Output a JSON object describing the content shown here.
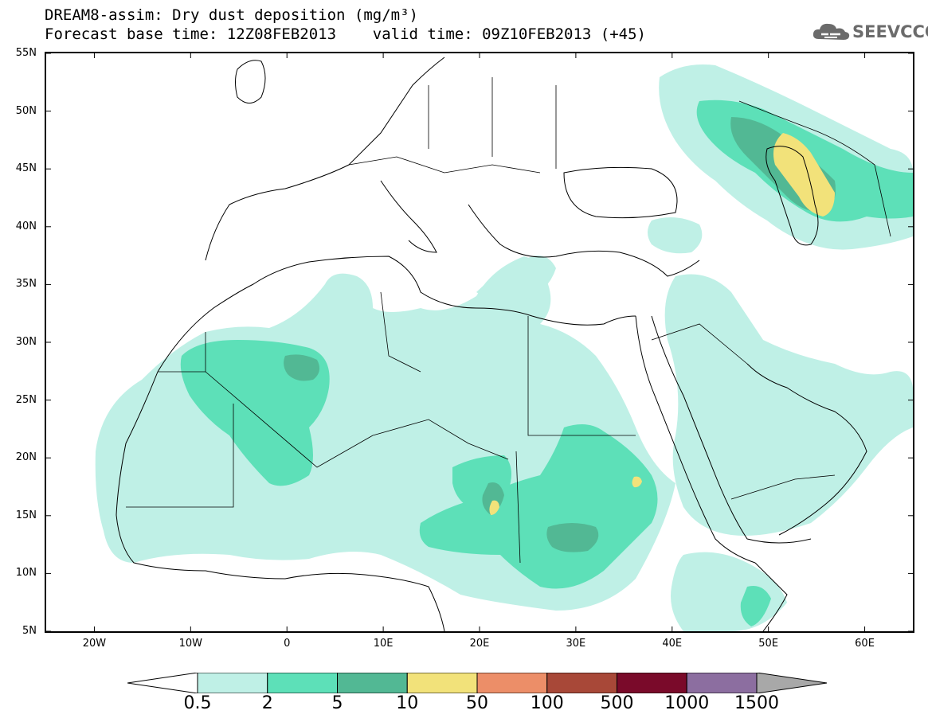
{
  "title": {
    "line1": "DREAM8-assim: Dry dust deposition (mg/m³)",
    "line2": "Forecast base time: 12Z08FEB2013    valid time: 09Z10FEB2013 (+45)"
  },
  "logo": {
    "text": "SEEVCCC"
  },
  "map": {
    "lat_range": [
      5,
      55
    ],
    "lon_range": [
      -25,
      65
    ],
    "lat_ticks": [
      {
        "value": 55,
        "label": "55N"
      },
      {
        "value": 50,
        "label": "50N"
      },
      {
        "value": 45,
        "label": "45N"
      },
      {
        "value": 40,
        "label": "40N"
      },
      {
        "value": 35,
        "label": "35N"
      },
      {
        "value": 30,
        "label": "30N"
      },
      {
        "value": 25,
        "label": "25N"
      },
      {
        "value": 20,
        "label": "20N"
      },
      {
        "value": 15,
        "label": "15N"
      },
      {
        "value": 10,
        "label": "10N"
      },
      {
        "value": 5,
        "label": "5N"
      }
    ],
    "lon_ticks": [
      {
        "value": -20,
        "label": "20W"
      },
      {
        "value": -10,
        "label": "10W"
      },
      {
        "value": 0,
        "label": "0"
      },
      {
        "value": 10,
        "label": "10E"
      },
      {
        "value": 20,
        "label": "20E"
      },
      {
        "value": 30,
        "label": "30E"
      },
      {
        "value": 40,
        "label": "40E"
      },
      {
        "value": 50,
        "label": "50E"
      },
      {
        "value": 60,
        "label": "60E"
      }
    ],
    "colors": {
      "c0_5": "#bff0e6",
      "c2": "#5de0b8",
      "c5": "#52b894",
      "c10": "#f2e27a"
    }
  },
  "colorbar": {
    "levels": [
      "0.5",
      "2",
      "5",
      "10",
      "50",
      "100",
      "500",
      "1000",
      "1500"
    ],
    "colors": [
      "#bff0e6",
      "#5de0b8",
      "#52b894",
      "#f2e27a",
      "#ec8e68",
      "#a84838",
      "#7a0a2a",
      "#8c6ea0"
    ],
    "under_color": "#ffffff",
    "over_color": "#a8a8a8"
  }
}
